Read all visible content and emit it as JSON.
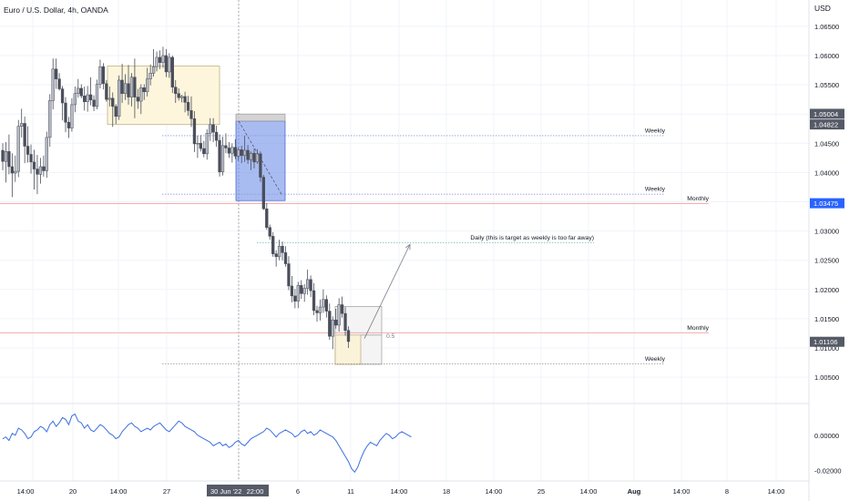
{
  "chart_data": [
    {
      "type": "candlestick",
      "title": "Euro / U.S. Dollar, 4h, OANDA",
      "currency_label": "USD",
      "ylim": [
        1.0005,
        1.0695
      ],
      "price_ticks": [
        "1.06500",
        "1.06000",
        "1.05500",
        "1.05000",
        "1.04500",
        "1.04000",
        "1.03500",
        "1.03000",
        "1.02500",
        "1.02000",
        "1.01500",
        "1.01000",
        "1.00500"
      ],
      "price_badges": [
        {
          "label": "1.05004",
          "value": 1.05004,
          "style": "dark"
        },
        {
          "label": "1.04822",
          "value": 1.04822,
          "style": "dark"
        },
        {
          "label": "1.03475",
          "value": 1.03475,
          "style": "blue"
        },
        {
          "label": "1.01106",
          "value": 1.01106,
          "style": "dark"
        }
      ],
      "x_ticks": [
        "14:00",
        "20",
        "14:00",
        "27",
        "30 Jun '22",
        "22:00",
        "6",
        "11",
        "14:00",
        "18",
        "14:00",
        "25",
        "14:00",
        "Aug",
        "14:00",
        "8",
        "14:00"
      ],
      "series": [
        {
          "values": [
            [
              1.0438,
              1.045,
              1.0404,
              1.0419
            ],
            [
              1.0419,
              1.0452,
              1.0383,
              1.0436
            ],
            [
              1.0436,
              1.0465,
              1.0397,
              1.041
            ],
            [
              1.041,
              1.0433,
              1.0358,
              1.0399
            ],
            [
              1.0399,
              1.0429,
              1.0384,
              1.0402
            ],
            [
              1.0402,
              1.049,
              1.0392,
              1.0479
            ],
            [
              1.0479,
              1.0509,
              1.046,
              1.0484
            ],
            [
              1.0484,
              1.0496,
              1.0416,
              1.0445
            ],
            [
              1.0445,
              1.0479,
              1.0417,
              1.0431
            ],
            [
              1.0431,
              1.0448,
              1.0398,
              1.0418
            ],
            [
              1.0418,
              1.0439,
              1.0371,
              1.0406
            ],
            [
              1.0406,
              1.043,
              1.0363,
              1.0397
            ],
            [
              1.0397,
              1.0425,
              1.0381,
              1.041
            ],
            [
              1.041,
              1.0429,
              1.0393,
              1.0403
            ],
            [
              1.0403,
              1.047,
              1.0391,
              1.046
            ],
            [
              1.046,
              1.0534,
              1.0444,
              1.0523
            ],
            [
              1.0523,
              1.0595,
              1.0508,
              1.0577
            ],
            [
              1.0577,
              1.0595,
              1.0543,
              1.056
            ],
            [
              1.056,
              1.057,
              1.054,
              1.0543
            ],
            [
              1.0543,
              1.0548,
              1.0489,
              1.0519
            ],
            [
              1.0519,
              1.0529,
              1.0469,
              1.0486
            ],
            [
              1.0486,
              1.0495,
              1.0459,
              1.0476
            ],
            [
              1.0476,
              1.0527,
              1.047,
              1.0516
            ],
            [
              1.0516,
              1.0547,
              1.0503,
              1.0535
            ],
            [
              1.0535,
              1.056,
              1.0528,
              1.0544
            ],
            [
              1.0544,
              1.0551,
              1.0527,
              1.0531
            ],
            [
              1.0531,
              1.0547,
              1.0506,
              1.0521
            ],
            [
              1.0521,
              1.0548,
              1.0504,
              1.0533
            ],
            [
              1.0533,
              1.0563,
              1.0515,
              1.0524
            ],
            [
              1.0524,
              1.0532,
              1.0505,
              1.0513
            ],
            [
              1.0513,
              1.0559,
              1.0508,
              1.0551
            ],
            [
              1.0551,
              1.0593,
              1.0544,
              1.0581
            ],
            [
              1.0581,
              1.0587,
              1.0542,
              1.0552
            ],
            [
              1.0552,
              1.0558,
              1.0521,
              1.0525
            ],
            [
              1.0525,
              1.0547,
              1.0513,
              1.0527
            ],
            [
              1.0527,
              1.0537,
              1.0478,
              1.0513
            ],
            [
              1.0513,
              1.0517,
              1.0483,
              1.0496
            ],
            [
              1.0496,
              1.0566,
              1.049,
              1.0558
            ],
            [
              1.0558,
              1.0586,
              1.0519,
              1.0535
            ],
            [
              1.0535,
              1.0568,
              1.0524,
              1.0552
            ],
            [
              1.0552,
              1.0584,
              1.0516,
              1.0529
            ],
            [
              1.0529,
              1.057,
              1.0513,
              1.0563
            ],
            [
              1.0563,
              1.0595,
              1.0493,
              1.0529
            ],
            [
              1.0529,
              1.0543,
              1.0509,
              1.0522
            ],
            [
              1.0522,
              1.0551,
              1.05,
              1.0545
            ],
            [
              1.0545,
              1.0551,
              1.0524,
              1.0538
            ],
            [
              1.0538,
              1.0579,
              1.053,
              1.056
            ],
            [
              1.056,
              1.0585,
              1.0549,
              1.057
            ],
            [
              1.057,
              1.0611,
              1.0564,
              1.0581
            ],
            [
              1.0581,
              1.0607,
              1.0573,
              1.0597
            ],
            [
              1.0597,
              1.0609,
              1.0577,
              1.0588
            ],
            [
              1.0588,
              1.0615,
              1.0579,
              1.06
            ],
            [
              1.06,
              1.0611,
              1.0563,
              1.0572
            ],
            [
              1.0572,
              1.0604,
              1.0562,
              1.0597
            ],
            [
              1.0597,
              1.06,
              1.0536,
              1.0546
            ],
            [
              1.0546,
              1.0558,
              1.0519,
              1.0535
            ],
            [
              1.0535,
              1.0544,
              1.0523,
              1.0528
            ],
            [
              1.0528,
              1.0533,
              1.052,
              1.053
            ],
            [
              1.053,
              1.0538,
              1.0503,
              1.052
            ],
            [
              1.052,
              1.0531,
              1.0497,
              1.0506
            ],
            [
              1.0506,
              1.053,
              1.0478,
              1.0492
            ],
            [
              1.0492,
              1.0505,
              1.0435,
              1.0449
            ],
            [
              1.0449,
              1.0463,
              1.0425,
              1.045
            ],
            [
              1.045,
              1.0464,
              1.0436,
              1.0441
            ],
            [
              1.0441,
              1.0454,
              1.0426,
              1.0432
            ],
            [
              1.0432,
              1.0474,
              1.0422,
              1.0467
            ],
            [
              1.0467,
              1.0493,
              1.0454,
              1.0482
            ],
            [
              1.0482,
              1.0493,
              1.0452,
              1.0469
            ],
            [
              1.0469,
              1.048,
              1.0444,
              1.0455
            ],
            [
              1.0455,
              1.0465,
              1.0393,
              1.0401
            ],
            [
              1.0401,
              1.0461,
              1.0395,
              1.0446
            ],
            [
              1.0446,
              1.0467,
              1.0433,
              1.0442
            ],
            [
              1.0442,
              1.0452,
              1.0425,
              1.0433
            ],
            [
              1.0433,
              1.045,
              1.0417,
              1.0443
            ],
            [
              1.0443,
              1.0457,
              1.0423,
              1.0428
            ],
            [
              1.0428,
              1.0443,
              1.042,
              1.0439
            ],
            [
              1.0439,
              1.0446,
              1.0416,
              1.0429
            ],
            [
              1.0429,
              1.0463,
              1.0418,
              1.0438
            ],
            [
              1.0438,
              1.0447,
              1.0415,
              1.0422
            ],
            [
              1.0422,
              1.0436,
              1.0404,
              1.0433
            ],
            [
              1.0433,
              1.0441,
              1.0407,
              1.0418
            ],
            [
              1.0418,
              1.044,
              1.0415,
              1.0432
            ],
            [
              1.0432,
              1.0436,
              1.0384,
              1.0392
            ],
            [
              1.0392,
              1.0396,
              1.0336,
              1.0338
            ],
            [
              1.0338,
              1.0348,
              1.0302,
              1.0306
            ],
            [
              1.0306,
              1.0311,
              1.0285,
              1.0291
            ],
            [
              1.0291,
              1.0298,
              1.0256,
              1.0261
            ],
            [
              1.0261,
              1.0267,
              1.0239,
              1.0256
            ],
            [
              1.0256,
              1.0285,
              1.025,
              1.0274
            ],
            [
              1.0274,
              1.0282,
              1.025,
              1.0263
            ],
            [
              1.0263,
              1.0274,
              1.0239,
              1.0244
            ],
            [
              1.0244,
              1.0257,
              1.0199,
              1.0206
            ],
            [
              1.0206,
              1.0223,
              1.0178,
              1.0189
            ],
            [
              1.0189,
              1.0201,
              1.0168,
              1.018
            ],
            [
              1.018,
              1.0213,
              1.0168,
              1.0207
            ],
            [
              1.0207,
              1.0216,
              1.0184,
              1.0193
            ],
            [
              1.0193,
              1.0209,
              1.0179,
              1.0202
            ],
            [
              1.0202,
              1.0234,
              1.0191,
              1.0217
            ],
            [
              1.0217,
              1.0224,
              1.0187,
              1.0198
            ],
            [
              1.0198,
              1.0211,
              1.0156,
              1.0164
            ],
            [
              1.0164,
              1.0172,
              1.0145,
              1.016
            ],
            [
              1.016,
              1.0183,
              1.0147,
              1.017
            ],
            [
              1.017,
              1.02,
              1.016,
              1.0183
            ],
            [
              1.0183,
              1.019,
              1.0152,
              1.0163
            ],
            [
              1.0163,
              1.0176,
              1.0114,
              1.012
            ],
            [
              1.012,
              1.0154,
              1.0098,
              1.0148
            ],
            [
              1.0148,
              1.0167,
              1.0133,
              1.0139
            ],
            [
              1.0139,
              1.0185,
              1.0128,
              1.0174
            ],
            [
              1.0174,
              1.0188,
              1.0152,
              1.0159
            ],
            [
              1.0159,
              1.017,
              1.0121,
              1.013
            ],
            [
              1.013,
              1.0137,
              1.01,
              1.0111
            ]
          ]
        }
      ],
      "zones": [
        {
          "kind": "range",
          "fill": "#fdf6dc",
          "top": 1.0582,
          "bottom": 1.0482
        },
        {
          "kind": "supply",
          "fill": "#6f8fea",
          "top": 1.0488,
          "bottom": 1.0352
        },
        {
          "kind": "supply-cap",
          "fill": "#c9c9c9",
          "top": 1.05,
          "bottom": 1.0488
        },
        {
          "kind": "target-box",
          "fill": "#f4f4f4",
          "top": 1.0171,
          "bottom": 1.0072
        },
        {
          "kind": "target-box-half",
          "fill": "#fbf3d9",
          "top": 1.0122,
          "bottom": 1.0072
        }
      ],
      "levels": [
        {
          "label": "Weekly",
          "value": 1.0463,
          "color": "#8c9bd8",
          "style": "dotted"
        },
        {
          "label": "Weekly",
          "value": 1.0363,
          "color": "#8c9bd8",
          "style": "dotted"
        },
        {
          "label": "Monthly",
          "value": 1.0347,
          "color": "#f2a0a0",
          "style": "solid"
        },
        {
          "label": "Daily (this is target as weekly is too far away)",
          "value": 1.028,
          "color": "#7fc9b8",
          "style": "dotted"
        },
        {
          "label": "Monthly",
          "value": 1.0126,
          "color": "#f2a0a0",
          "style": "solid"
        },
        {
          "label": "Weekly",
          "value": 1.0073,
          "color": "#9a9a9a",
          "style": "dotted"
        }
      ],
      "fib_label": "0.5",
      "arrow_target": 1.0277,
      "grid": true
    },
    {
      "type": "line",
      "panel": "oscillator",
      "ylim": [
        -0.026,
        0.018
      ],
      "tick_labels": [
        "0.00000",
        "-0.02000"
      ],
      "series": [
        {
          "color": "#3b6fe0",
          "values": [
            -0.002,
            -0.001,
            -0.003,
            0.001,
            0.0,
            0.004,
            0.003,
            0.001,
            -0.002,
            -0.001,
            0.002,
            0.003,
            0.005,
            0.004,
            0.002,
            0.006,
            0.008,
            0.005,
            0.007,
            0.01,
            0.009,
            0.006,
            0.011,
            0.012,
            0.008,
            0.007,
            0.004,
            0.006,
            0.003,
            0.002,
            0.004,
            0.006,
            0.005,
            0.003,
            0.001,
            0.0,
            -0.002,
            -0.001,
            0.002,
            0.004,
            0.006,
            0.007,
            0.005,
            0.004,
            0.002,
            0.003,
            0.004,
            0.003,
            0.005,
            0.006,
            0.007,
            0.005,
            0.003,
            0.002,
            0.004,
            0.006,
            0.008,
            0.007,
            0.005,
            0.004,
            0.003,
            0.002,
            0.0,
            -0.001,
            -0.002,
            -0.003,
            -0.004,
            -0.006,
            -0.005,
            -0.004,
            -0.006,
            -0.005,
            -0.007,
            -0.006,
            -0.004,
            -0.003,
            -0.005,
            -0.006,
            -0.004,
            -0.002,
            -0.001,
            0.0,
            0.001,
            0.002,
            0.004,
            0.003,
            0.001,
            -0.001,
            0.001,
            0.002,
            0.003,
            0.002,
            0.001,
            -0.001,
            0.0,
            0.002,
            0.003,
            0.001,
            0.002,
            0.0,
            0.001,
            0.003,
            0.002,
            0.001,
            0.0,
            -0.001,
            -0.003,
            -0.006,
            -0.009,
            -0.012,
            -0.015,
            -0.019,
            -0.021,
            -0.018,
            -0.013,
            -0.009,
            -0.006,
            -0.004,
            -0.005,
            -0.006,
            -0.003,
            -0.001,
            0.001,
            0.0,
            -0.002,
            -0.001,
            0.001,
            0.002,
            0.001,
            0.0,
            -0.001
          ]
        }
      ]
    }
  ]
}
